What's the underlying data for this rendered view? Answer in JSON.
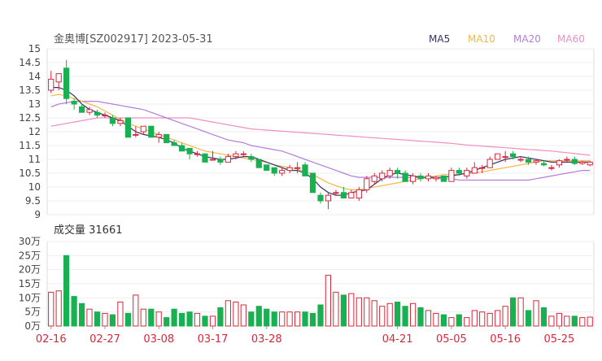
{
  "header": {
    "title": "金奥博[SZ002917] 2023-05-31"
  },
  "legend": [
    {
      "label": "MA5",
      "color": "#333366"
    },
    {
      "label": "MA10",
      "color": "#f5b74a"
    },
    {
      "label": "MA20",
      "color": "#b47ddb"
    },
    {
      "label": "MA60",
      "color": "#ef8ec2"
    }
  ],
  "colors": {
    "up": "#d42a3c",
    "down": "#18b050",
    "axis": "#444444",
    "grid": "#eeeeee",
    "date": "#d42a3c"
  },
  "chart_data": [
    {
      "type": "candlestick",
      "title": "金奥博[SZ002917] 2023-05-31",
      "ylim": [
        9,
        15
      ],
      "yticks": [
        "15",
        "14.5",
        "14",
        "13.5",
        "13",
        "12.5",
        "12",
        "11.5",
        "11",
        "10.5",
        "10",
        "9.5",
        "9"
      ],
      "dates": [
        "02-16",
        "02-17",
        "02-20",
        "02-21",
        "02-22",
        "02-23",
        "02-24",
        "02-27",
        "02-28",
        "03-01",
        "03-02",
        "03-03",
        "03-06",
        "03-07",
        "03-08",
        "03-09",
        "03-10",
        "03-13",
        "03-14",
        "03-15",
        "03-16",
        "03-17",
        "03-20",
        "03-21",
        "03-22",
        "03-23",
        "03-24",
        "03-27",
        "03-28",
        "03-29",
        "03-30",
        "03-31",
        "04-03",
        "04-04",
        "04-06",
        "04-07",
        "04-10",
        "04-11",
        "04-12",
        "04-13",
        "04-14",
        "04-17",
        "04-18",
        "04-19",
        "04-20",
        "04-21",
        "04-24",
        "04-25",
        "04-26",
        "04-27",
        "04-28",
        "05-04",
        "05-05",
        "05-08",
        "05-09",
        "05-10",
        "05-11",
        "05-12",
        "05-15",
        "05-16",
        "05-17",
        "05-18",
        "05-19",
        "05-22",
        "05-23",
        "05-24",
        "05-25",
        "05-26",
        "05-29",
        "05-30",
        "05-31"
      ],
      "xticks": [
        "02-16",
        "02-27",
        "03-08",
        "03-17",
        "03-28",
        "04-21",
        "05-05",
        "05-16",
        "05-25"
      ],
      "ohlc": [
        [
          13.5,
          14.2,
          13.4,
          13.9
        ],
        [
          13.8,
          14.1,
          13.5,
          14.1
        ],
        [
          14.3,
          14.6,
          13.0,
          13.2
        ],
        [
          13.1,
          13.2,
          12.8,
          13.0
        ],
        [
          12.9,
          13.0,
          12.7,
          12.7
        ],
        [
          12.7,
          12.9,
          12.6,
          12.8
        ],
        [
          12.7,
          12.8,
          12.5,
          12.6
        ],
        [
          12.6,
          12.7,
          12.5,
          12.6
        ],
        [
          12.5,
          12.6,
          12.2,
          12.3
        ],
        [
          12.3,
          12.5,
          12.2,
          12.4
        ],
        [
          12.5,
          12.5,
          11.8,
          11.8
        ],
        [
          11.9,
          12.2,
          11.8,
          11.9
        ],
        [
          12.0,
          12.2,
          11.9,
          12.2
        ],
        [
          12.2,
          12.2,
          11.8,
          11.8
        ],
        [
          11.8,
          12.0,
          11.6,
          11.9
        ],
        [
          11.9,
          11.9,
          11.6,
          11.6
        ],
        [
          11.6,
          11.7,
          11.5,
          11.5
        ],
        [
          11.5,
          11.6,
          11.3,
          11.3
        ],
        [
          11.4,
          11.4,
          11.0,
          11.2
        ],
        [
          11.2,
          11.3,
          11.1,
          11.2
        ],
        [
          11.2,
          11.2,
          10.9,
          10.9
        ],
        [
          11.0,
          11.3,
          11.0,
          11.0
        ],
        [
          11.0,
          11.1,
          10.8,
          10.9
        ],
        [
          10.9,
          11.2,
          10.9,
          11.1
        ],
        [
          11.1,
          11.3,
          11.0,
          11.2
        ],
        [
          11.2,
          11.3,
          11.1,
          11.2
        ],
        [
          11.1,
          11.2,
          10.9,
          11.0
        ],
        [
          11.0,
          11.0,
          10.7,
          10.7
        ],
        [
          10.8,
          10.8,
          10.6,
          10.6
        ],
        [
          10.7,
          10.7,
          10.4,
          10.5
        ],
        [
          10.5,
          10.7,
          10.4,
          10.6
        ],
        [
          10.6,
          10.8,
          10.5,
          10.7
        ],
        [
          10.7,
          10.9,
          10.5,
          10.7
        ],
        [
          10.8,
          10.9,
          10.4,
          10.4
        ],
        [
          10.5,
          10.5,
          9.8,
          9.8
        ],
        [
          9.7,
          9.8,
          9.4,
          9.5
        ],
        [
          9.5,
          9.8,
          9.2,
          9.7
        ],
        [
          9.8,
          9.9,
          9.7,
          9.8
        ],
        [
          9.8,
          10.0,
          9.6,
          9.6
        ],
        [
          9.6,
          9.9,
          9.6,
          9.8
        ],
        [
          9.6,
          10.0,
          9.5,
          9.9
        ],
        [
          9.9,
          10.4,
          9.8,
          10.3
        ],
        [
          10.2,
          10.5,
          10.1,
          10.4
        ],
        [
          10.3,
          10.6,
          10.2,
          10.5
        ],
        [
          10.4,
          10.7,
          10.3,
          10.6
        ],
        [
          10.6,
          10.7,
          10.3,
          10.5
        ],
        [
          10.5,
          10.6,
          10.2,
          10.2
        ],
        [
          10.2,
          10.5,
          10.1,
          10.4
        ],
        [
          10.4,
          10.5,
          10.2,
          10.3
        ],
        [
          10.3,
          10.5,
          10.2,
          10.4
        ],
        [
          10.3,
          10.4,
          10.2,
          10.35
        ],
        [
          10.4,
          10.4,
          10.2,
          10.2
        ],
        [
          10.2,
          10.7,
          10.2,
          10.6
        ],
        [
          10.6,
          10.7,
          10.4,
          10.5
        ],
        [
          10.4,
          10.7,
          10.3,
          10.6
        ],
        [
          10.5,
          10.9,
          10.5,
          10.7
        ],
        [
          10.7,
          10.8,
          10.5,
          10.7
        ],
        [
          10.7,
          11.1,
          10.7,
          11.0
        ],
        [
          11.0,
          11.2,
          11.0,
          11.2
        ],
        [
          11.1,
          11.3,
          10.9,
          11.1
        ],
        [
          11.2,
          11.3,
          11.0,
          11.1
        ],
        [
          11.0,
          11.1,
          10.9,
          11.0
        ],
        [
          11.0,
          11.1,
          10.8,
          10.9
        ],
        [
          10.9,
          11.0,
          10.8,
          10.95
        ],
        [
          10.85,
          10.95,
          10.75,
          10.8
        ],
        [
          10.7,
          10.8,
          10.6,
          10.7
        ],
        [
          10.8,
          11.0,
          10.7,
          10.95
        ],
        [
          11.0,
          11.1,
          10.9,
          11.0
        ],
        [
          11.0,
          11.1,
          10.8,
          10.85
        ],
        [
          10.85,
          10.95,
          10.8,
          10.9
        ],
        [
          10.8,
          10.95,
          10.75,
          10.9
        ]
      ],
      "ma": {
        "MA5": [
          13.6,
          13.6,
          13.5,
          13.3,
          13.0,
          12.8,
          12.7,
          12.6,
          12.5,
          12.4,
          12.2,
          12.0,
          11.9,
          11.85,
          11.8,
          11.7,
          11.6,
          11.4,
          11.3,
          11.2,
          11.1,
          11.05,
          11.0,
          11.0,
          11.05,
          11.1,
          11.1,
          11.0,
          10.9,
          10.8,
          10.7,
          10.6,
          10.6,
          10.5,
          10.3,
          10.0,
          9.8,
          9.7,
          9.7,
          9.8,
          9.85,
          9.9,
          10.1,
          10.3,
          10.45,
          10.5,
          10.45,
          10.4,
          10.35,
          10.35,
          10.35,
          10.35,
          10.4,
          10.45,
          10.5,
          10.6,
          10.7,
          10.8,
          10.9,
          11.0,
          11.05,
          11.1,
          11.05,
          11.0,
          10.95,
          10.9,
          10.9,
          10.9,
          10.9,
          10.9,
          10.9
        ],
        "MA10": [
          13.3,
          13.35,
          13.3,
          13.2,
          13.1,
          13.0,
          12.9,
          12.75,
          12.6,
          12.45,
          12.3,
          12.2,
          12.1,
          12.0,
          11.9,
          11.8,
          11.7,
          11.6,
          11.5,
          11.4,
          11.3,
          11.25,
          11.2,
          11.15,
          11.1,
          11.05,
          11.0,
          10.95,
          10.9,
          10.8,
          10.75,
          10.7,
          10.65,
          10.55,
          10.45,
          10.3,
          10.15,
          10.05,
          9.95,
          9.9,
          9.9,
          9.95,
          10.0,
          10.05,
          10.1,
          10.15,
          10.2,
          10.25,
          10.3,
          10.35,
          10.4,
          10.45,
          10.45,
          10.45,
          10.5,
          10.5,
          10.55,
          10.6,
          10.65,
          10.7,
          10.75,
          10.8,
          10.85,
          10.9,
          10.95,
          10.95,
          10.95,
          10.95,
          10.95,
          10.95,
          10.95
        ],
        "MA20": [
          12.9,
          13.0,
          13.05,
          13.1,
          13.1,
          13.1,
          13.1,
          13.05,
          13.0,
          12.95,
          12.9,
          12.85,
          12.8,
          12.7,
          12.6,
          12.5,
          12.4,
          12.3,
          12.2,
          12.1,
          12.0,
          11.9,
          11.8,
          11.7,
          11.65,
          11.6,
          11.5,
          11.45,
          11.4,
          11.35,
          11.3,
          11.2,
          11.1,
          11.0,
          10.9,
          10.8,
          10.7,
          10.6,
          10.5,
          10.4,
          10.35,
          10.35,
          10.35,
          10.35,
          10.35,
          10.35,
          10.35,
          10.35,
          10.35,
          10.35,
          10.3,
          10.3,
          10.3,
          10.25,
          10.25,
          10.25,
          10.25,
          10.25,
          10.25,
          10.25,
          10.25,
          10.25,
          10.25,
          10.3,
          10.35,
          10.4,
          10.45,
          10.5,
          10.55,
          10.6,
          10.6
        ],
        "MA60": [
          12.2,
          12.25,
          12.3,
          12.35,
          12.4,
          12.45,
          12.5,
          12.5,
          12.5,
          12.5,
          12.5,
          12.5,
          12.5,
          12.5,
          12.5,
          12.5,
          12.5,
          12.5,
          12.5,
          12.45,
          12.4,
          12.35,
          12.3,
          12.25,
          12.2,
          12.15,
          12.1,
          12.08,
          12.06,
          12.04,
          12.02,
          12.0,
          11.98,
          11.96,
          11.94,
          11.92,
          11.9,
          11.88,
          11.86,
          11.84,
          11.82,
          11.8,
          11.78,
          11.76,
          11.74,
          11.72,
          11.7,
          11.68,
          11.66,
          11.64,
          11.62,
          11.6,
          11.58,
          11.55,
          11.52,
          11.5,
          11.48,
          11.46,
          11.44,
          11.42,
          11.4,
          11.38,
          11.36,
          11.34,
          11.32,
          11.3,
          11.27,
          11.24,
          11.21,
          11.18,
          11.15
        ]
      }
    },
    {
      "type": "bar",
      "title": "成交量 31661",
      "ylim": [
        0,
        300000
      ],
      "yticks": [
        "30万",
        "25万",
        "20万",
        "15万",
        "10万",
        "5万",
        "0万"
      ],
      "values": [
        120000,
        125000,
        250000,
        105000,
        80000,
        60000,
        50000,
        45000,
        40000,
        85000,
        45000,
        110000,
        60000,
        60000,
        50000,
        30000,
        60000,
        45000,
        50000,
        45000,
        35000,
        35000,
        65000,
        90000,
        85000,
        75000,
        50000,
        70000,
        60000,
        50000,
        50000,
        50000,
        50000,
        50000,
        45000,
        75000,
        180000,
        120000,
        110000,
        115000,
        100000,
        100000,
        90000,
        70000,
        80000,
        85000,
        70000,
        80000,
        65000,
        55000,
        45000,
        40000,
        30000,
        40000,
        30000,
        55000,
        50000,
        45000,
        55000,
        70000,
        100000,
        100000,
        55000,
        90000,
        65000,
        35000,
        45000,
        35000,
        35000,
        30000,
        31661
      ]
    }
  ]
}
